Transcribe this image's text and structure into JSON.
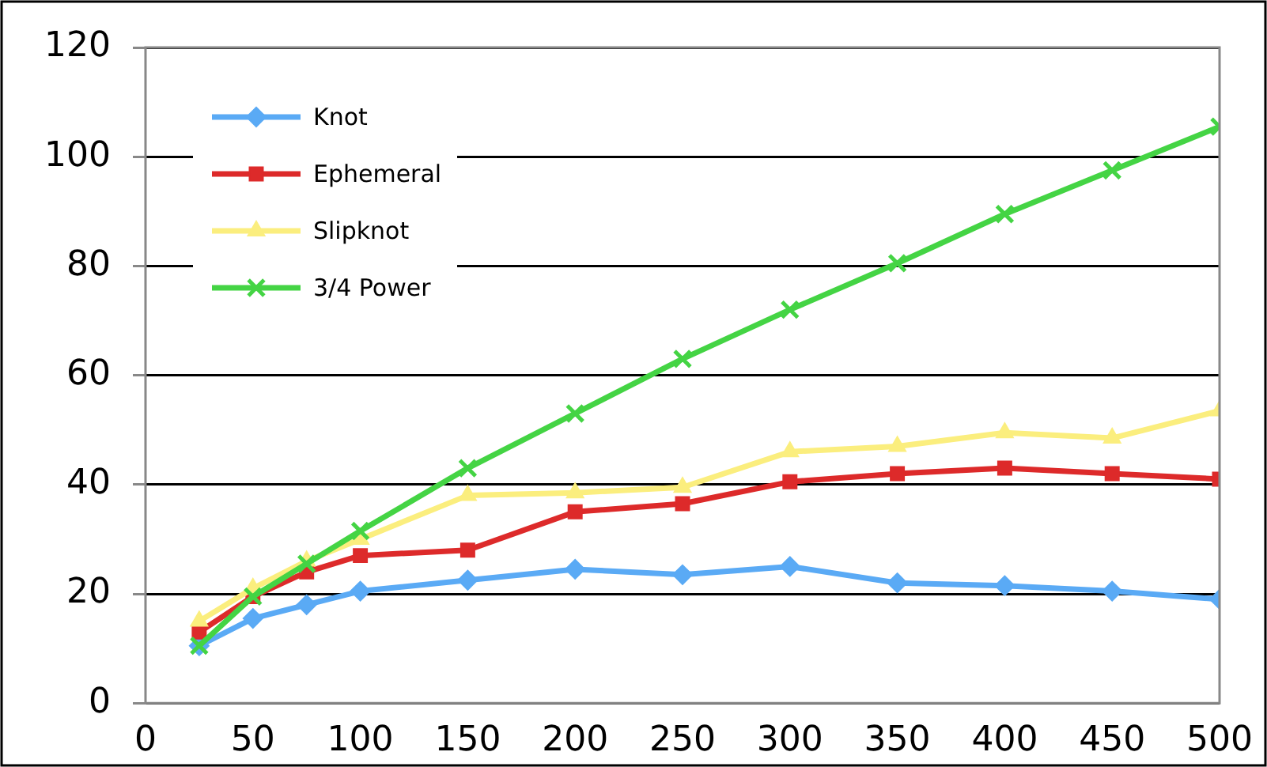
{
  "chart_data": {
    "type": "line",
    "x": [
      25,
      50,
      75,
      100,
      150,
      200,
      250,
      300,
      350,
      400,
      450,
      500
    ],
    "series": [
      {
        "name": "Knot",
        "color": "#5aaaf5",
        "marker": "diamond",
        "values": [
          10.5,
          15.5,
          18,
          20.5,
          22.5,
          24.5,
          23.5,
          25,
          22,
          21.5,
          20.5,
          19
        ]
      },
      {
        "name": "Ephemeral",
        "color": "#dd2a2a",
        "marker": "square",
        "values": [
          13,
          19.5,
          24,
          27,
          28,
          35,
          36.5,
          40.5,
          42,
          43,
          42,
          41
        ]
      },
      {
        "name": "Slipknot",
        "color": "#fbee7e",
        "marker": "triangle",
        "values": [
          15,
          21,
          26,
          30,
          38,
          38.5,
          39.5,
          46,
          47,
          49.5,
          48.5,
          53.5
        ]
      },
      {
        "name": "3/4 Power",
        "color": "#44d444",
        "marker": "cross",
        "values": [
          10.5,
          19.5,
          25.5,
          31.5,
          43,
          53,
          63,
          72,
          80.5,
          89.5,
          97.5,
          105.5
        ]
      }
    ],
    "xlim": [
      0,
      500
    ],
    "xticks": [
      0,
      50,
      100,
      150,
      200,
      250,
      300,
      350,
      400,
      450,
      500
    ],
    "ylim": [
      0,
      120
    ],
    "yticks": [
      0,
      20,
      40,
      60,
      80,
      100,
      120
    ],
    "grid": "y",
    "legend": "top left",
    "line_style": "solid"
  }
}
